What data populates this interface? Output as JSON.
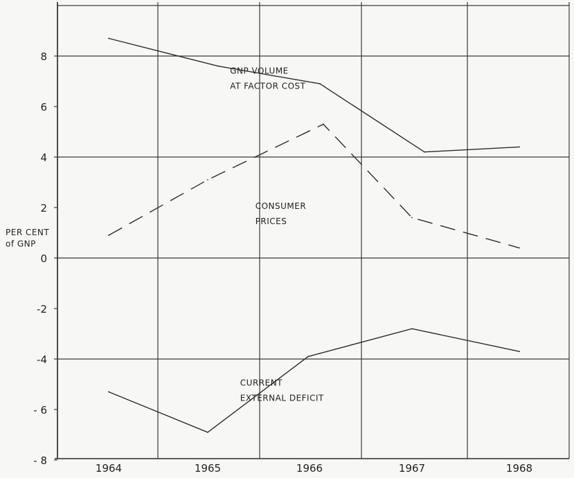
{
  "chart_data": {
    "type": "line",
    "title": "",
    "xlabel": "",
    "ylabel": "PER CENT of GNP",
    "ylabel_lines": [
      "PER CENT",
      "of GNP"
    ],
    "x": [
      "1964",
      "1965",
      "1966",
      "1967",
      "1968"
    ],
    "ylim": [
      -8,
      10
    ],
    "yticks": [
      8,
      6,
      4,
      2,
      0,
      -2,
      -4,
      -6,
      -8
    ],
    "ytick_labels": [
      "8",
      "6",
      "4",
      "2",
      "0",
      "-2",
      "-4",
      "- 6",
      "- 8"
    ],
    "grid": true,
    "series": [
      {
        "name": "GNP VOLUME AT FACTOR COST",
        "label_lines": [
          "GNP VOLUME",
          "AT FACTOR COST"
        ],
        "style": "solid",
        "values": [
          8.7,
          7.6,
          6.9,
          4.2,
          4.4
        ],
        "x_offsets": [
          0,
          0.5,
          1,
          1,
          0
        ],
        "label_anchor": {
          "x": 1.2,
          "y": 7.3
        }
      },
      {
        "name": "CONSUMER PRICES",
        "label_lines": [
          "CONSUMER",
          "PRICES"
        ],
        "style": "dashed",
        "values": [
          0.9,
          3.1,
          5.3,
          1.6,
          0.4
        ],
        "label_anchor": {
          "x": 1.45,
          "y": 1.95
        }
      },
      {
        "name": "CURRENT EXTERNAL DEFICIT",
        "label_lines": [
          "CURRENT",
          "EXTERNAL DEFICIT"
        ],
        "style": "solid",
        "values": [
          -5.3,
          -6.9,
          -3.9,
          -2.8,
          -3.7
        ],
        "label_anchor": {
          "x": 1.3,
          "y": -5.05
        }
      }
    ]
  }
}
